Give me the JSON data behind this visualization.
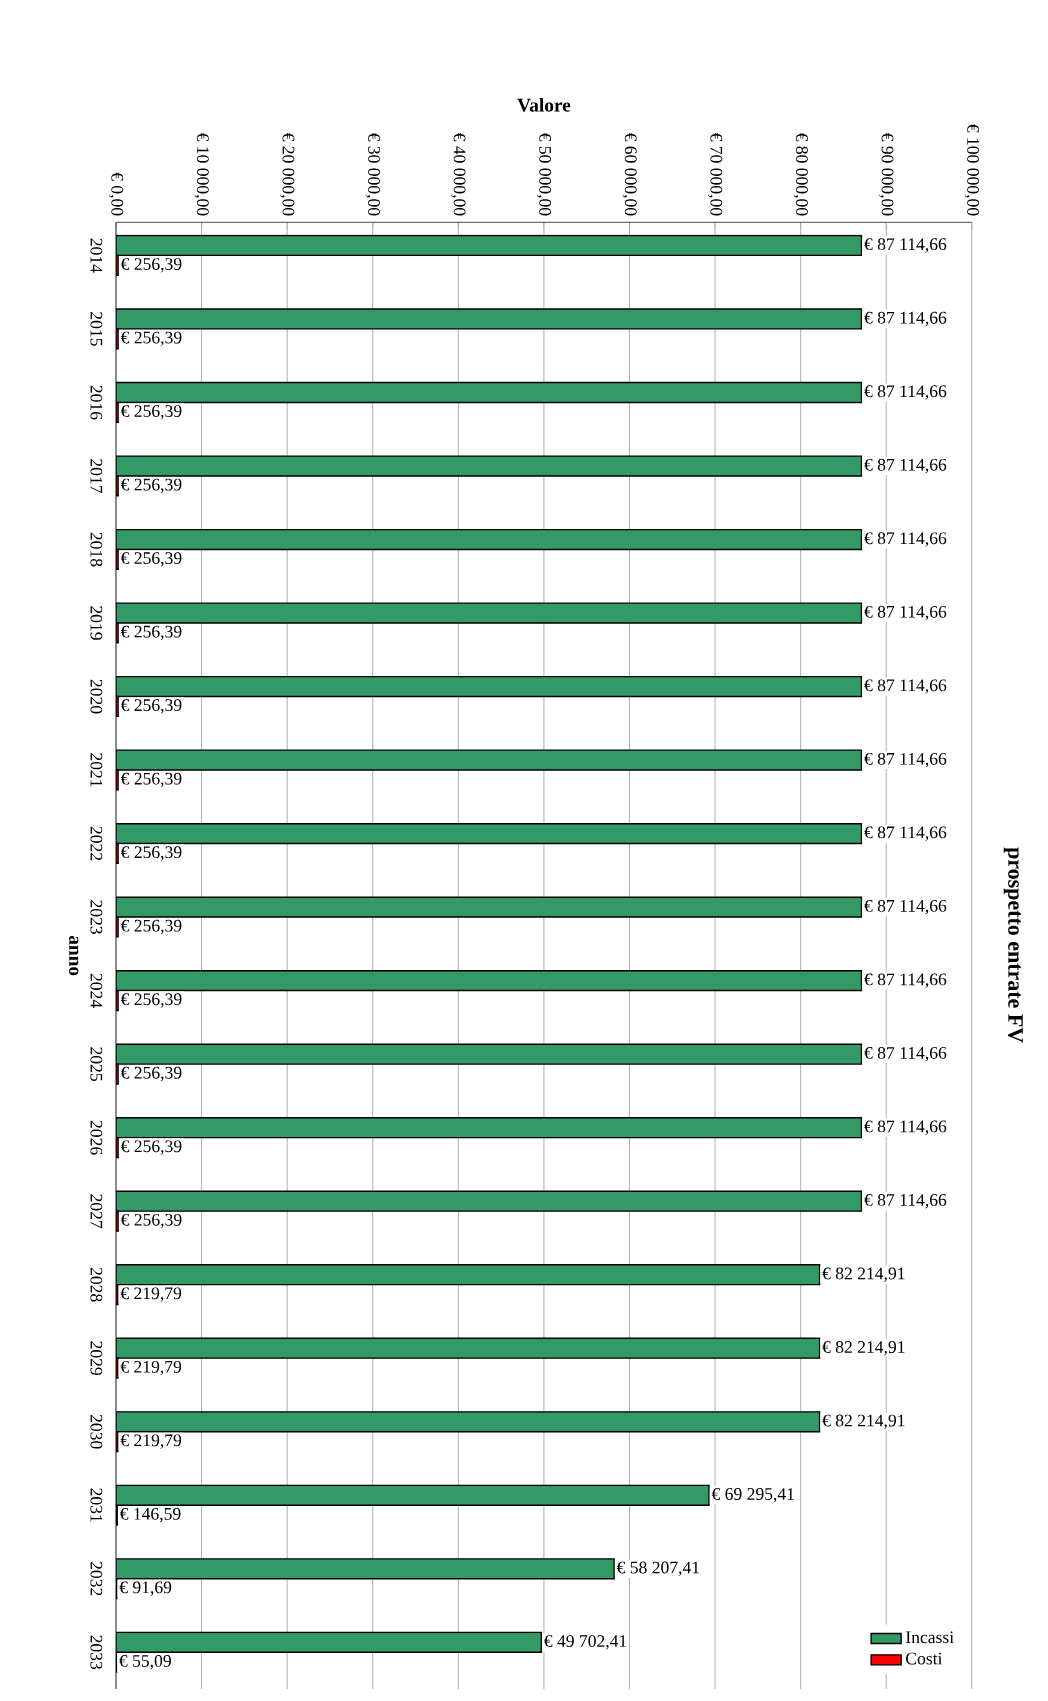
{
  "chart_data": {
    "type": "bar",
    "orientation": "horizontal",
    "title": "prospetto entrate FV",
    "xlabel": "Valore",
    "ylabel": "anno",
    "categories": [
      "2014",
      "2015",
      "2016",
      "2017",
      "2018",
      "2019",
      "2020",
      "2021",
      "2022",
      "2023",
      "2024",
      "2025",
      "2026",
      "2027",
      "2028",
      "2029",
      "2030",
      "2031",
      "2032",
      "2033"
    ],
    "series": [
      {
        "name": "Incassi",
        "color": "#339966",
        "values": [
          87114.66,
          87114.66,
          87114.66,
          87114.66,
          87114.66,
          87114.66,
          87114.66,
          87114.66,
          87114.66,
          87114.66,
          87114.66,
          87114.66,
          87114.66,
          87114.66,
          82214.91,
          82214.91,
          82214.91,
          69295.41,
          58207.41,
          49702.41
        ],
        "value_labels": [
          "€ 87 114,66",
          "€ 87 114,66",
          "€ 87 114,66",
          "€ 87 114,66",
          "€ 87 114,66",
          "€ 87 114,66",
          "€ 87 114,66",
          "€ 87 114,66",
          "€ 87 114,66",
          "€ 87 114,66",
          "€ 87 114,66",
          "€ 87 114,66",
          "€ 87 114,66",
          "€ 87 114,66",
          "€ 82 214,91",
          "€ 82 214,91",
          "€ 82 214,91",
          "€ 69 295,41",
          "€ 58 207,41",
          "€ 49 702,41"
        ]
      },
      {
        "name": "Costi",
        "color": "#ff0000",
        "values": [
          256.39,
          256.39,
          256.39,
          256.39,
          256.39,
          256.39,
          256.39,
          256.39,
          256.39,
          256.39,
          256.39,
          256.39,
          256.39,
          256.39,
          219.79,
          219.79,
          219.79,
          146.59,
          91.69,
          55.09
        ],
        "value_labels": [
          "€ 256,39",
          "€ 256,39",
          "€ 256,39",
          "€ 256,39",
          "€ 256,39",
          "€ 256,39",
          "€ 256,39",
          "€ 256,39",
          "€ 256,39",
          "€ 256,39",
          "€ 256,39",
          "€ 256,39",
          "€ 256,39",
          "€ 256,39",
          "€ 219,79",
          "€ 219,79",
          "€ 219,79",
          "€ 146,59",
          "€ 91,69",
          "€ 55,09"
        ]
      }
    ],
    "xlim": [
      0,
      100000
    ],
    "xticks": [
      {
        "value": 0,
        "label": "€ 0,00"
      },
      {
        "value": 10000,
        "label": "€ 10 000,00"
      },
      {
        "value": 20000,
        "label": "€ 20 000,00"
      },
      {
        "value": 30000,
        "label": "€ 30 000,00"
      },
      {
        "value": 40000,
        "label": "€ 40 000,00"
      },
      {
        "value": 50000,
        "label": "€ 50 000,00"
      },
      {
        "value": 60000,
        "label": "€ 60 000,00"
      },
      {
        "value": 70000,
        "label": "€ 70 000,00"
      },
      {
        "value": 80000,
        "label": "€ 80 000,00"
      },
      {
        "value": 90000,
        "label": "€ 90 000,00"
      },
      {
        "value": 100000,
        "label": "€ 100 000,00"
      }
    ],
    "grid": "x",
    "legend": "bottom right"
  }
}
